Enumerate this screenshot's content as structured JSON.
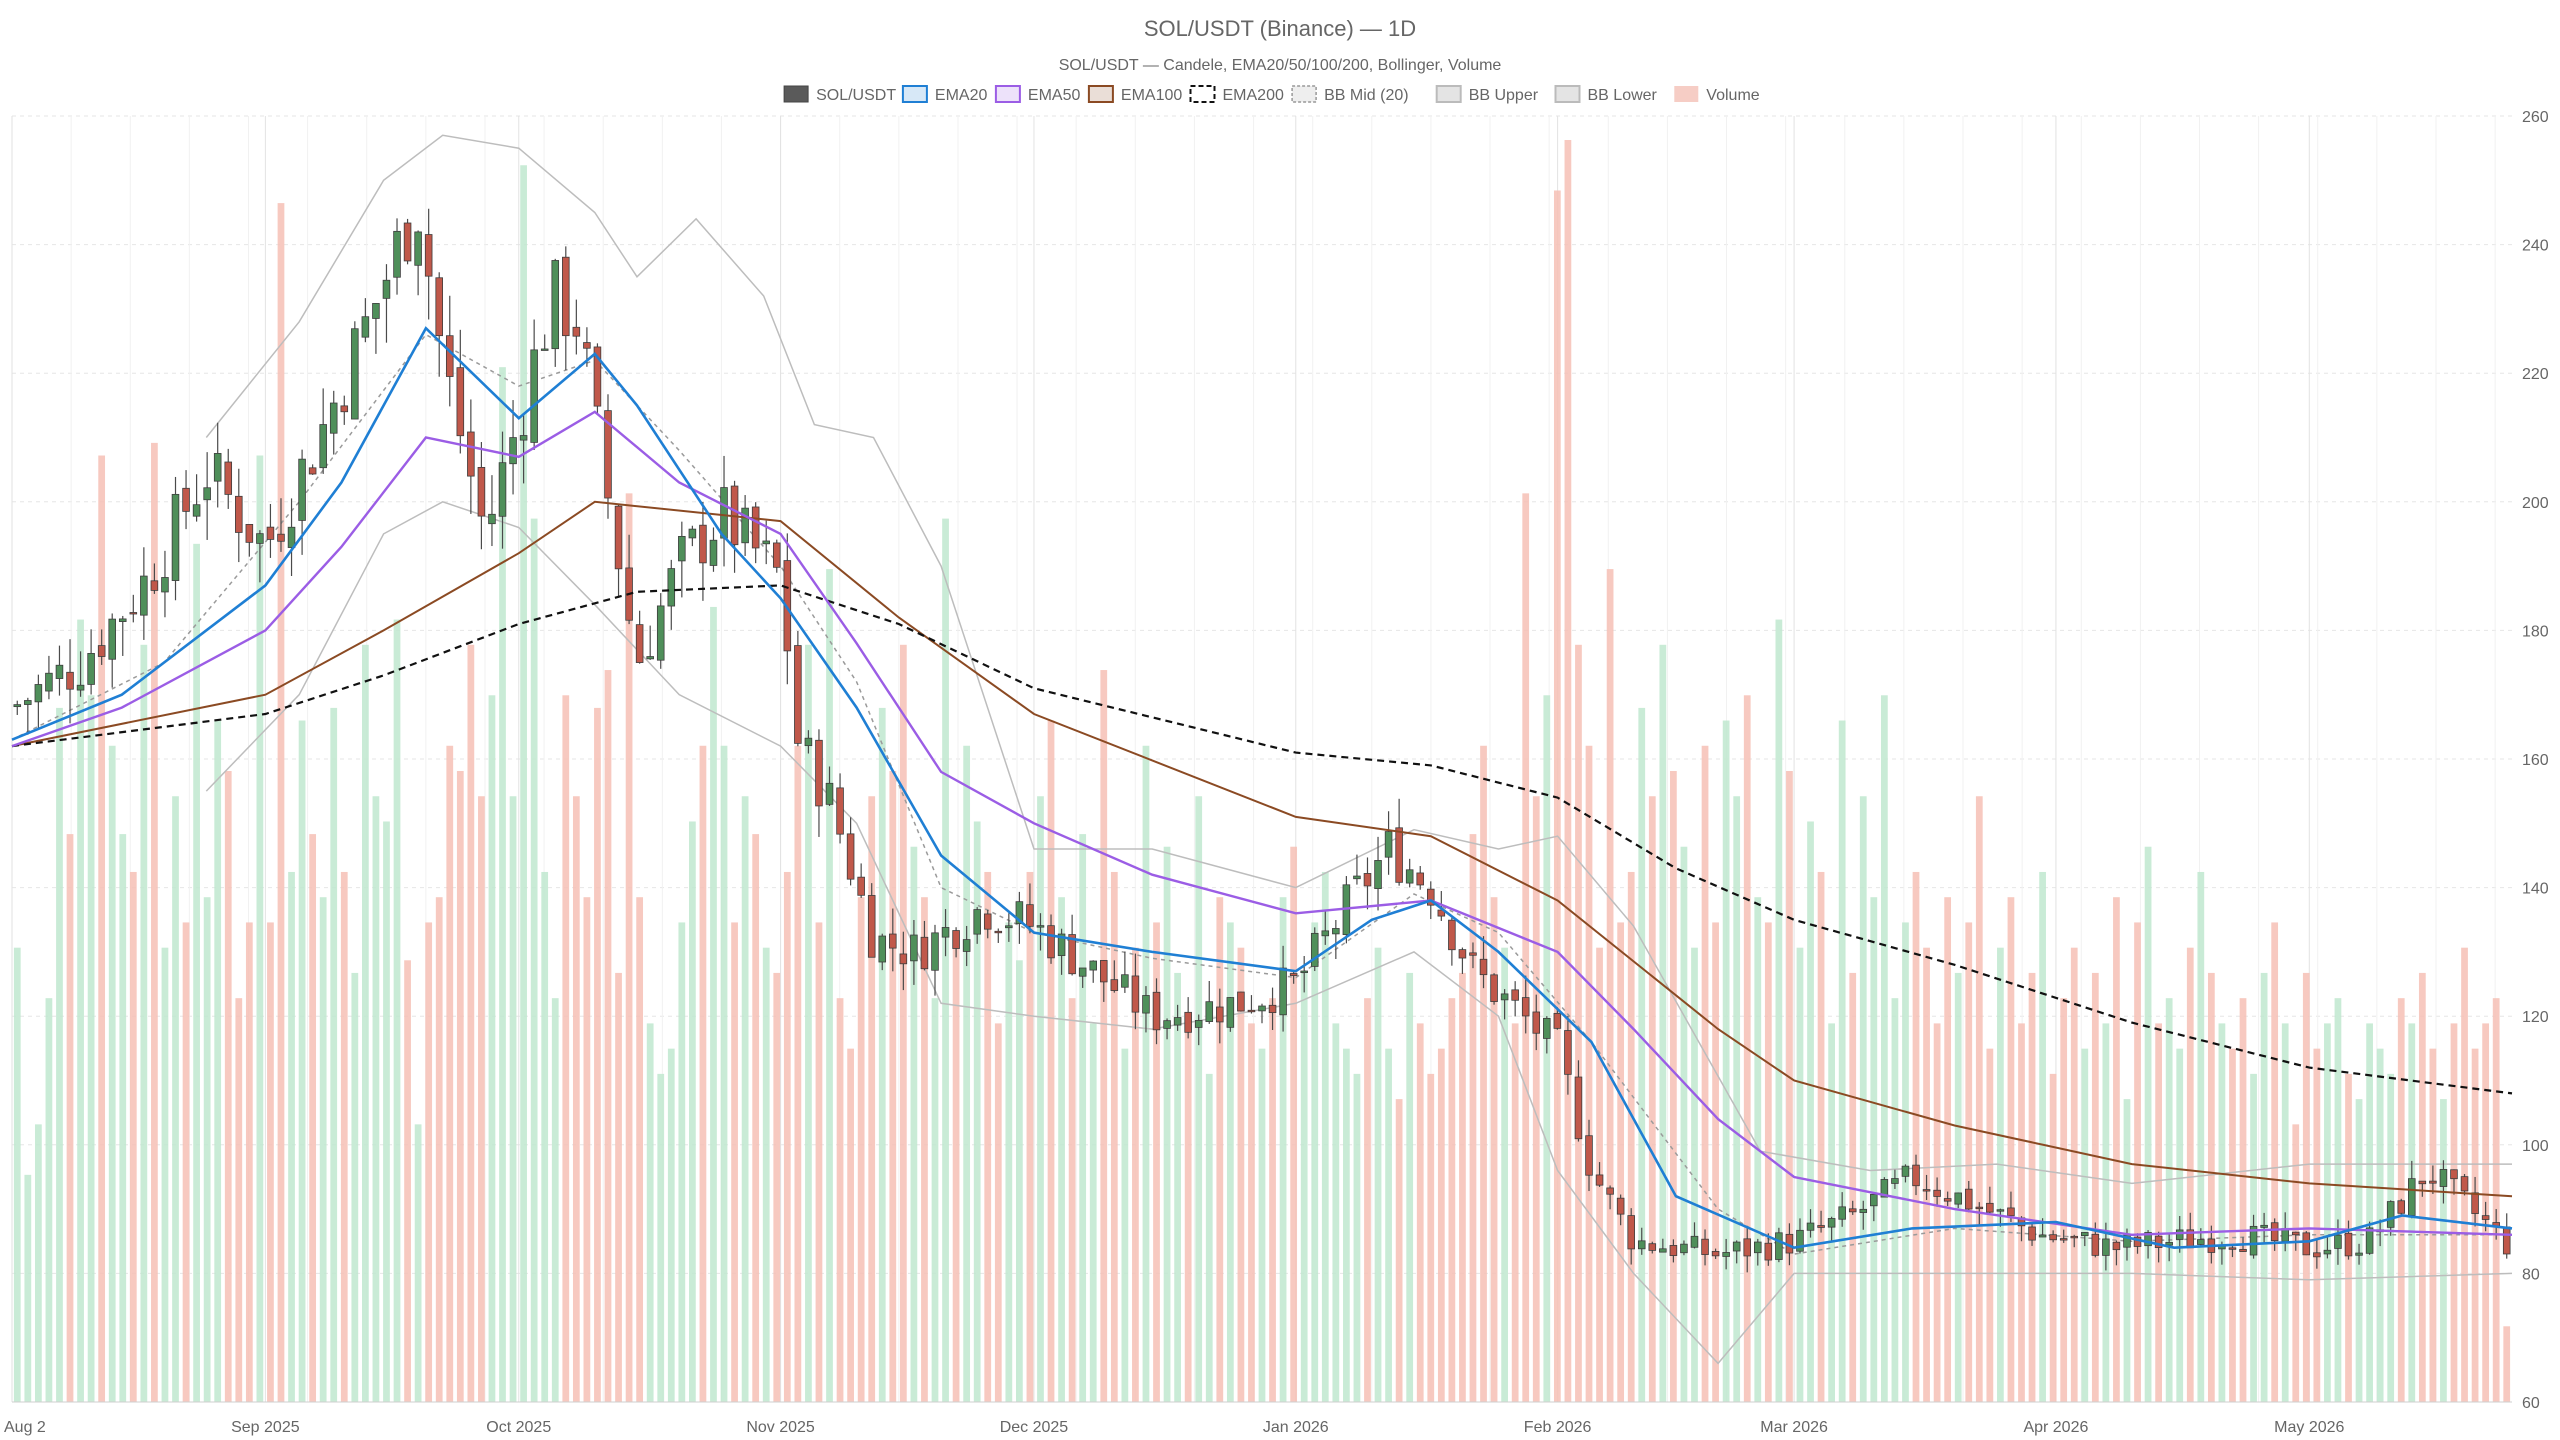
{
  "chart_data": {
    "type": "candlestick",
    "title": "SOL/USDT (Binance) — 1D",
    "subtitle": "SOL/USDT — Candele, EMA20/50/100/200, Bollinger, Volume",
    "legend": [
      {
        "label": "SOL/USDT",
        "color": "#555555",
        "style": "solid-box"
      },
      {
        "label": "EMA20",
        "color": "#1f7fd4",
        "style": "line"
      },
      {
        "label": "EMA50",
        "color": "#9b5de5",
        "style": "line"
      },
      {
        "label": "EMA100",
        "color": "#8b4a23",
        "style": "line"
      },
      {
        "label": "EMA200",
        "color": "#111111",
        "style": "dashed"
      },
      {
        "label": "BB Mid (20)",
        "color": "#999999",
        "style": "dotted"
      },
      {
        "label": "BB Upper",
        "color": "#bbbbbb",
        "style": "line"
      },
      {
        "label": "BB Lower",
        "color": "#bbbbbb",
        "style": "line"
      },
      {
        "label": "Volume",
        "color": "#f4b6ab",
        "style": "box"
      }
    ],
    "legend_position": "top-center",
    "y_axis": {
      "min": 60,
      "max": 260,
      "ticks": [
        60,
        80,
        100,
        120,
        140,
        160,
        180,
        200,
        220,
        240,
        260
      ],
      "position": "right"
    },
    "x_axis": {
      "start": "2025-08-02",
      "end": "2026-05-25",
      "ticks": [
        {
          "label": "Aug 2",
          "date": "2025-08-02"
        },
        {
          "label": "Sep 2025",
          "date": "2025-09-01"
        },
        {
          "label": "Oct 2025",
          "date": "2025-10-01"
        },
        {
          "label": "Nov 2025",
          "date": "2025-11-01"
        },
        {
          "label": "Dec 2025",
          "date": "2025-12-01"
        },
        {
          "label": "Jan 2026",
          "date": "2026-01-01"
        },
        {
          "label": "Feb 2026",
          "date": "2026-02-01"
        },
        {
          "label": "Mar 2026",
          "date": "2026-03-01"
        },
        {
          "label": "Apr 2026",
          "date": "2026-04-01"
        },
        {
          "label": "May 2026",
          "date": "2026-05-01"
        }
      ]
    },
    "grid": true,
    "colors": {
      "up": "#4f8f5a",
      "down": "#c0584a",
      "volume_up": "#bfe8cf",
      "volume_down": "#f6bfb5"
    },
    "close_series": {
      "x": [
        "2025-08-02",
        "2025-08-10",
        "2025-08-18",
        "2025-08-25",
        "2025-09-01",
        "2025-09-08",
        "2025-09-15",
        "2025-09-19",
        "2025-09-22",
        "2025-09-27",
        "2025-10-01",
        "2025-10-05",
        "2025-10-08",
        "2025-10-11",
        "2025-10-15",
        "2025-10-20",
        "2025-10-25",
        "2025-11-01",
        "2025-11-03",
        "2025-11-07",
        "2025-11-12",
        "2025-11-17",
        "2025-11-25",
        "2025-12-01",
        "2025-12-07",
        "2025-12-15",
        "2025-12-25",
        "2026-01-01",
        "2026-01-07",
        "2026-01-12",
        "2026-01-17",
        "2026-01-22",
        "2026-01-27",
        "2026-02-01",
        "2026-02-05",
        "2026-02-10",
        "2026-02-20",
        "2026-03-01",
        "2026-03-08",
        "2026-03-15",
        "2026-03-22",
        "2026-03-30",
        "2026-04-08",
        "2026-04-15",
        "2026-04-22",
        "2026-05-01",
        "2026-05-08",
        "2026-05-15",
        "2026-05-25"
      ],
      "close": [
        168,
        175,
        188,
        205,
        193,
        212,
        234,
        247,
        222,
        195,
        213,
        232,
        228,
        205,
        175,
        190,
        198,
        188,
        163,
        153,
        132,
        130,
        137,
        134,
        128,
        120,
        122,
        125,
        137,
        146,
        140,
        127,
        121,
        115,
        96,
        85,
        83,
        85,
        89,
        95,
        91,
        86,
        84,
        85,
        86,
        84,
        85,
        96,
        84
      ]
    },
    "ema20": {
      "x": [
        "2025-08-02",
        "2025-08-15",
        "2025-09-01",
        "2025-09-10",
        "2025-09-20",
        "2025-10-01",
        "2025-10-10",
        "2025-10-15",
        "2025-10-25",
        "2025-11-01",
        "2025-11-10",
        "2025-11-20",
        "2025-12-01",
        "2025-12-15",
        "2026-01-01",
        "2026-01-10",
        "2026-01-17",
        "2026-01-25",
        "2026-02-05",
        "2026-02-15",
        "2026-03-01",
        "2026-03-15",
        "2026-04-01",
        "2026-04-15",
        "2026-05-01",
        "2026-05-12",
        "2026-05-25"
      ],
      "y": [
        163,
        170,
        187,
        203,
        227,
        213,
        223,
        215,
        195,
        185,
        168,
        145,
        133,
        130,
        127,
        135,
        138,
        130,
        116,
        92,
        84,
        87,
        88,
        84,
        85,
        89,
        87
      ]
    },
    "ema50": {
      "x": [
        "2025-08-02",
        "2025-08-15",
        "2025-09-01",
        "2025-09-10",
        "2025-09-20",
        "2025-10-01",
        "2025-10-10",
        "2025-10-20",
        "2025-11-01",
        "2025-11-10",
        "2025-11-20",
        "2025-12-01",
        "2025-12-15",
        "2026-01-01",
        "2026-01-17",
        "2026-02-01",
        "2026-02-10",
        "2026-02-20",
        "2026-03-01",
        "2026-03-20",
        "2026-04-10",
        "2026-05-01",
        "2026-05-25"
      ],
      "y": [
        162,
        168,
        180,
        193,
        210,
        207,
        214,
        203,
        195,
        178,
        158,
        150,
        142,
        136,
        138,
        130,
        118,
        104,
        95,
        90,
        86,
        87,
        86
      ]
    },
    "ema100": {
      "x": [
        "2025-08-02",
        "2025-09-01",
        "2025-09-15",
        "2025-10-01",
        "2025-10-10",
        "2025-11-01",
        "2025-11-15",
        "2025-12-01",
        "2026-01-01",
        "2026-01-17",
        "2026-02-01",
        "2026-02-20",
        "2026-03-01",
        "2026-03-20",
        "2026-04-10",
        "2026-05-01",
        "2026-05-25"
      ],
      "y": [
        162,
        170,
        180,
        192,
        200,
        197,
        182,
        167,
        151,
        148,
        138,
        118,
        110,
        103,
        97,
        94,
        92
      ]
    },
    "ema200": {
      "x": [
        "2025-08-02",
        "2025-09-01",
        "2025-09-15",
        "2025-10-01",
        "2025-10-15",
        "2025-11-01",
        "2025-11-15",
        "2025-12-01",
        "2026-01-01",
        "2026-01-17",
        "2026-02-01",
        "2026-02-15",
        "2026-03-01",
        "2026-03-20",
        "2026-04-10",
        "2026-05-01",
        "2026-05-25"
      ],
      "y": [
        162,
        167,
        173,
        181,
        186,
        187,
        181,
        171,
        161,
        159,
        154,
        143,
        135,
        128,
        119,
        112,
        108
      ]
    },
    "bb_mid": {
      "x": [
        "2025-08-02",
        "2025-08-20",
        "2025-09-05",
        "2025-09-20",
        "2025-10-01",
        "2025-10-10",
        "2025-10-20",
        "2025-11-01",
        "2025-11-10",
        "2025-11-20",
        "2025-12-01",
        "2025-12-15",
        "2026-01-01",
        "2026-01-15",
        "2026-01-25",
        "2026-02-05",
        "2026-02-20",
        "2026-03-01",
        "2026-03-20",
        "2026-04-10",
        "2026-05-01",
        "2026-05-25"
      ],
      "y": [
        163,
        175,
        200,
        226,
        218,
        222,
        208,
        190,
        172,
        140,
        133,
        129,
        126,
        139,
        133,
        116,
        90,
        83,
        87,
        85,
        86,
        86
      ]
    },
    "bb_upper": {
      "x": [
        "2025-08-25",
        "2025-09-05",
        "2025-09-15",
        "2025-09-22",
        "2025-10-01",
        "2025-10-10",
        "2025-10-15",
        "2025-10-22",
        "2025-10-30",
        "2025-11-05",
        "2025-11-12",
        "2025-11-20",
        "2025-12-01",
        "2025-12-15",
        "2026-01-01",
        "2026-01-15",
        "2026-01-25",
        "2026-02-01",
        "2026-02-10",
        "2026-02-25",
        "2026-03-10",
        "2026-03-25",
        "2026-04-10",
        "2026-05-01",
        "2026-05-25"
      ],
      "y": [
        210,
        228,
        250,
        257,
        255,
        245,
        235,
        244,
        232,
        212,
        210,
        190,
        146,
        146,
        140,
        149,
        146,
        148,
        134,
        99,
        96,
        97,
        94,
        97,
        97
      ]
    },
    "bb_lower": {
      "x": [
        "2025-08-25",
        "2025-09-05",
        "2025-09-15",
        "2025-09-22",
        "2025-10-01",
        "2025-10-10",
        "2025-10-20",
        "2025-11-01",
        "2025-11-10",
        "2025-11-20",
        "2025-12-01",
        "2025-12-15",
        "2026-01-01",
        "2026-01-15",
        "2026-01-25",
        "2026-02-01",
        "2026-02-10",
        "2026-02-20",
        "2026-03-01",
        "2026-03-20",
        "2026-04-10",
        "2026-05-01",
        "2026-05-25"
      ],
      "y": [
        155,
        170,
        195,
        200,
        196,
        184,
        170,
        162,
        150,
        122,
        120,
        118,
        122,
        130,
        120,
        96,
        80,
        66,
        80,
        80,
        80,
        79,
        80
      ]
    },
    "volume": {
      "scale": "relative (0-1, fraction of panel height)",
      "values": [
        0.36,
        0.18,
        0.22,
        0.32,
        0.55,
        0.45,
        0.62,
        0.56,
        0.75,
        0.52,
        0.45,
        0.42,
        0.6,
        0.76,
        0.36,
        0.48,
        0.38,
        0.68,
        0.4,
        0.54,
        0.5,
        0.32,
        0.38,
        0.75,
        0.38,
        0.95,
        0.42,
        0.54,
        0.45,
        0.4,
        0.55,
        0.42,
        0.34,
        0.6,
        0.48,
        0.46,
        0.62,
        0.35,
        0.22,
        0.38,
        0.4,
        0.52,
        0.5,
        0.6,
        0.48,
        0.56,
        0.82,
        0.48,
        0.98,
        0.7,
        0.42,
        0.32,
        0.56,
        0.48,
        0.4,
        0.55,
        0.58,
        0.34,
        0.72,
        0.4,
        0.3,
        0.26,
        0.28,
        0.38,
        0.46,
        0.52,
        0.63,
        0.52,
        0.38,
        0.48,
        0.45,
        0.36,
        0.34,
        0.42,
        0.52,
        0.6,
        0.38,
        0.66,
        0.32,
        0.28,
        0.4,
        0.48,
        0.55,
        0.5,
        0.6,
        0.44,
        0.4,
        0.32,
        0.7,
        0.36,
        0.52,
        0.46,
        0.42,
        0.3,
        0.38,
        0.35,
        0.42,
        0.48,
        0.54,
        0.4,
        0.32,
        0.45,
        0.3,
        0.58,
        0.42,
        0.28,
        0.36,
        0.52,
        0.38,
        0.44,
        0.34,
        0.3,
        0.48,
        0.26,
        0.4,
        0.38,
        0.36,
        0.3,
        0.28,
        0.32,
        0.4,
        0.44,
        0.34,
        0.38,
        0.42,
        0.3,
        0.28,
        0.26,
        0.32,
        0.36,
        0.28,
        0.24,
        0.34,
        0.3,
        0.26,
        0.28,
        0.32,
        0.34,
        0.45,
        0.52,
        0.4,
        0.36,
        0.3,
        0.72,
        0.48,
        0.56,
        0.96,
        1.0,
        0.6,
        0.52,
        0.36,
        0.66,
        0.38,
        0.42,
        0.55,
        0.48,
        0.6,
        0.5,
        0.44,
        0.36,
        0.52,
        0.38,
        0.54,
        0.48,
        0.56,
        0.4,
        0.38,
        0.62,
        0.5,
        0.36,
        0.46,
        0.42,
        0.3,
        0.54,
        0.34,
        0.48,
        0.4,
        0.56,
        0.32,
        0.38,
        0.42,
        0.36,
        0.3,
        0.4,
        0.34,
        0.38,
        0.48,
        0.28,
        0.36,
        0.4,
        0.3,
        0.34,
        0.42,
        0.26,
        0.32,
        0.36,
        0.28,
        0.34,
        0.3,
        0.4,
        0.24,
        0.38,
        0.44,
        0.3,
        0.32,
        0.28,
        0.36,
        0.42,
        0.34,
        0.3,
        0.28,
        0.32,
        0.26,
        0.34,
        0.38,
        0.3,
        0.22,
        0.34,
        0.28,
        0.3,
        0.32,
        0.26,
        0.24,
        0.3,
        0.28,
        0.26,
        0.32,
        0.3,
        0.34,
        0.28,
        0.24,
        0.3,
        0.36,
        0.28,
        0.3,
        0.32,
        0.06
      ]
    }
  }
}
